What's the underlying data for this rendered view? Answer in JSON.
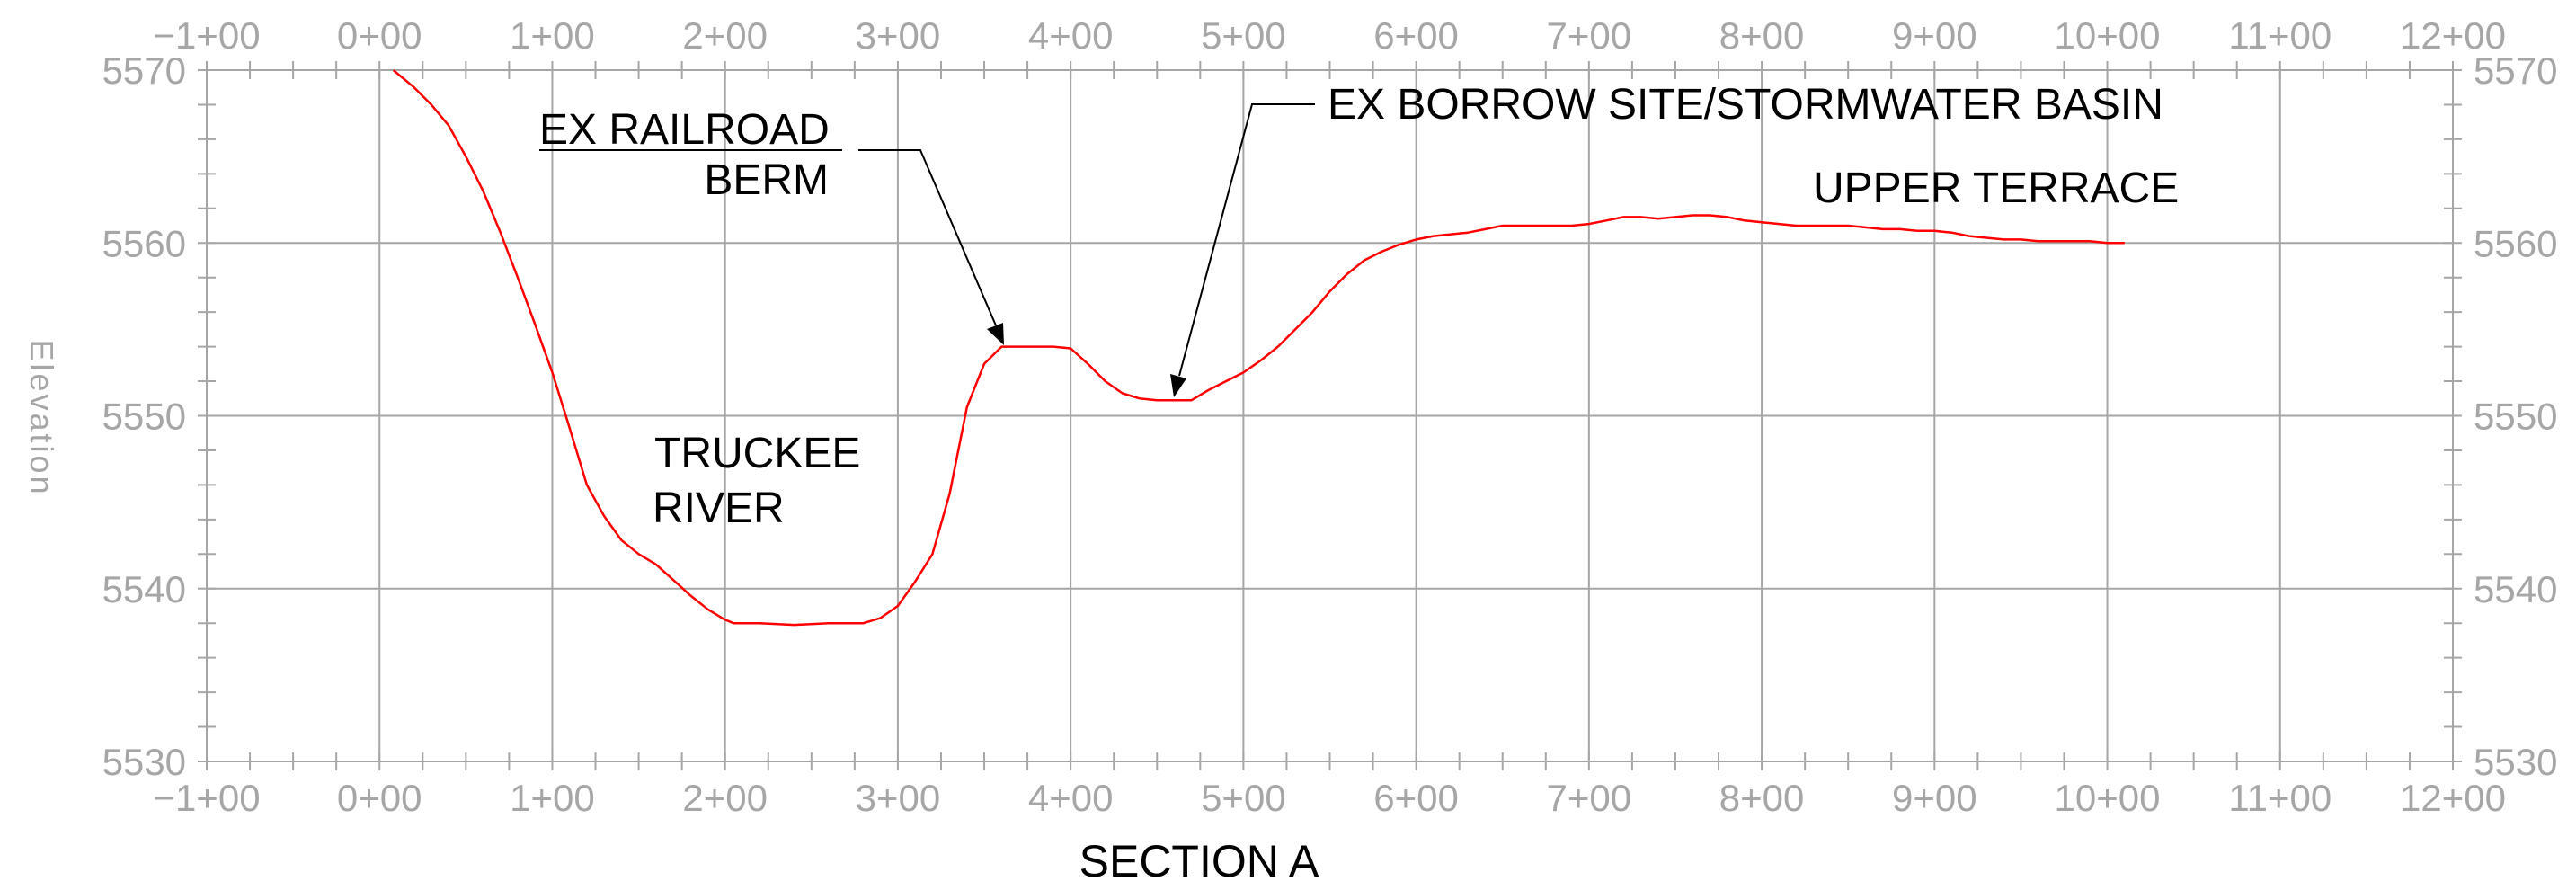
{
  "chart_data": {
    "type": "line",
    "title": "SECTION A",
    "xlabel": "",
    "ylabel": "Elevation",
    "xlim": [
      -100,
      1200
    ],
    "ylim": [
      5530,
      5570
    ],
    "grid": true,
    "x_ticks": [
      -100,
      0,
      100,
      200,
      300,
      400,
      500,
      600,
      700,
      800,
      900,
      1000,
      1100,
      1200
    ],
    "x_tick_labels": [
      "−1+00",
      "0+00",
      "1+00",
      "2+00",
      "3+00",
      "4+00",
      "5+00",
      "6+00",
      "7+00",
      "8+00",
      "9+00",
      "10+00",
      "11+00",
      "12+00"
    ],
    "y_ticks": [
      5530,
      5540,
      5550,
      5560,
      5570
    ],
    "y_tick_labels": [
      "5530",
      "5540",
      "5550",
      "5560",
      "5570"
    ],
    "colors": {
      "profile": "#ff0000",
      "grid": "#a6a6a6",
      "labels": "#a6a6a6",
      "annotations": "#000000"
    },
    "series": [
      {
        "x": [
          8,
          20,
          30,
          40,
          50,
          60,
          70,
          80,
          90,
          100,
          110,
          120,
          130,
          140,
          150,
          160,
          170,
          180,
          190,
          200,
          205,
          220,
          240,
          260,
          280,
          290,
          300,
          310,
          320,
          330,
          340,
          350,
          360,
          370,
          380,
          390,
          400,
          410,
          420,
          430,
          440,
          450,
          460,
          470,
          480,
          490,
          500,
          510,
          520,
          530,
          540,
          550,
          560,
          570,
          580,
          590,
          600,
          610,
          620,
          630,
          640,
          650,
          660,
          670,
          680,
          690,
          700,
          710,
          720,
          730,
          740,
          750,
          760,
          770,
          780,
          790,
          800,
          810,
          820,
          830,
          840,
          850,
          860,
          870,
          880,
          890,
          900,
          910,
          920,
          930,
          940,
          950,
          960,
          970,
          980,
          990,
          1000,
          1010
        ],
        "y": [
          5570,
          5569,
          5568,
          5566.8,
          5565,
          5563,
          5560.6,
          5558,
          5555.3,
          5552.5,
          5549.3,
          5546,
          5544.2,
          5542.8,
          5542,
          5541.4,
          5540.5,
          5539.6,
          5538.8,
          5538.2,
          5538,
          5538,
          5537.9,
          5538,
          5538,
          5538.3,
          5539,
          5540.4,
          5542,
          5545.5,
          5550.5,
          5553,
          5554,
          5554,
          5554,
          5554,
          5553.9,
          5553,
          5552,
          5551.3,
          5551,
          5550.9,
          5550.9,
          5550.9,
          5551.5,
          5552,
          5552.5,
          5553.2,
          5554,
          5555,
          5556,
          5557.2,
          5558.2,
          5559,
          5559.5,
          5559.9,
          5560.2,
          5560.4,
          5560.5,
          5560.6,
          5560.8,
          5561,
          5561,
          5561,
          5561,
          5561,
          5561.1,
          5561.3,
          5561.5,
          5561.5,
          5561.4,
          5561.5,
          5561.6,
          5561.6,
          5561.5,
          5561.3,
          5561.2,
          5561.1,
          5561,
          5561,
          5561,
          5561,
          5560.9,
          5560.8,
          5560.8,
          5560.7,
          5560.7,
          5560.6,
          5560.4,
          5560.3,
          5560.2,
          5560.2,
          5560.1,
          5560.1,
          5560.1,
          5560.1,
          5560,
          5560
        ]
      }
    ],
    "annotations": {
      "railroad_line1": "EX RAILROAD",
      "railroad_line2": "BERM",
      "borrow_site": "EX BORROW SITE/STORMWATER BASIN",
      "upper_terrace": "UPPER TERRACE",
      "river_line1": "TRUCKEE",
      "river_line2": "RIVER"
    }
  }
}
